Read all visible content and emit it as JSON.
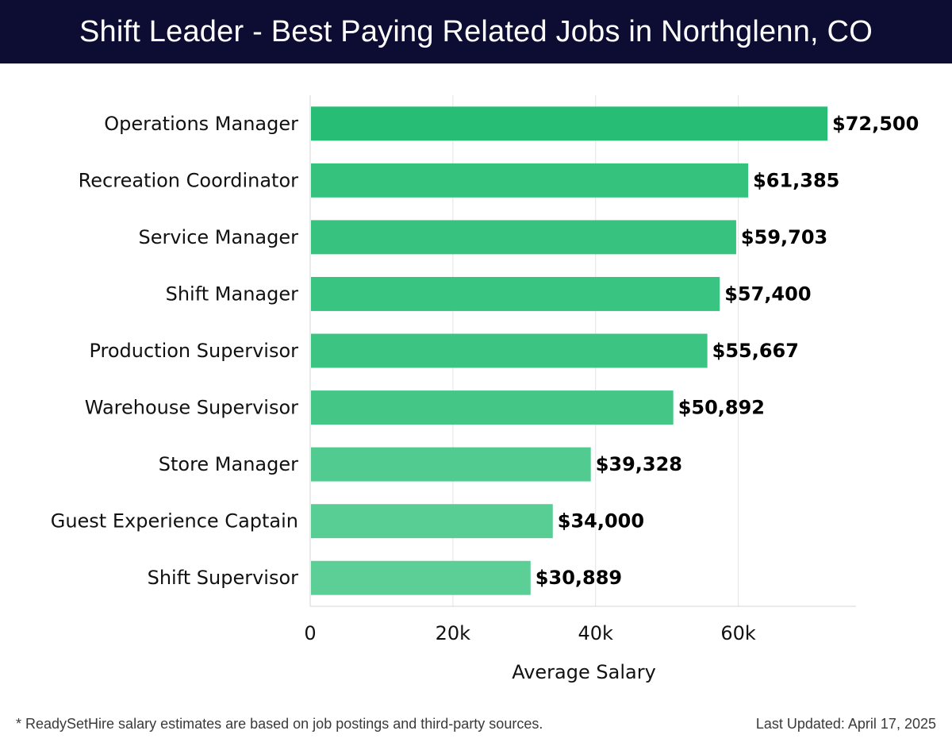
{
  "header": {
    "title": "Shift Leader - Best Paying Related Jobs in Northglenn, CO"
  },
  "chart_data": {
    "type": "bar",
    "orientation": "horizontal",
    "categories": [
      "Operations Manager",
      "Recreation Coordinator",
      "Service Manager",
      "Shift Manager",
      "Production Supervisor",
      "Warehouse Supervisor",
      "Store Manager",
      "Guest Experience Captain",
      "Shift Supervisor"
    ],
    "values": [
      72500,
      61385,
      59703,
      57400,
      55667,
      50892,
      39328,
      34000,
      30889
    ],
    "value_labels": [
      "$72,500",
      "$61,385",
      "$59,703",
      "$57,400",
      "$55,667",
      "$50,892",
      "$39,328",
      "$34,000",
      "$30,889"
    ],
    "xlabel": "Average Salary",
    "xlim": [
      0,
      76500
    ],
    "xticks": [
      0,
      20000,
      40000,
      60000
    ],
    "xtick_labels": [
      "0",
      "20k",
      "40k",
      "60k"
    ],
    "grid": "vertical",
    "colors": {
      "bar_dark": "#27bd74",
      "bar_light": "#5ccf97"
    }
  },
  "footer": {
    "note": "* ReadySetHire salary estimates are based on job postings and third-party sources.",
    "updated": "Last Updated: April 17, 2025"
  }
}
